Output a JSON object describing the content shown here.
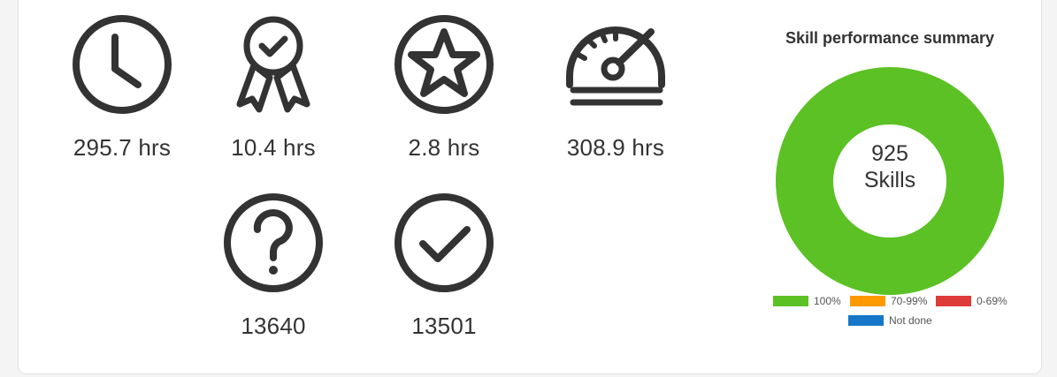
{
  "stats": {
    "clock_value": "295.7 hrs",
    "award_value": "10.4 hrs",
    "star_value": "2.8 hrs",
    "speed_value": "308.9 hrs",
    "question_value": "13640",
    "check_value": "13501"
  },
  "icons": {
    "clock": "clock-icon",
    "award": "award-ribbon-icon",
    "star": "star-icon",
    "speed": "speedometer-icon",
    "question": "question-icon",
    "check": "check-icon"
  },
  "colors": {
    "icon": "#333333",
    "done_100": "#5cc125",
    "done_70_99": "#ff9900",
    "done_0_69": "#e03b3b",
    "not_done": "#1677c9"
  },
  "chart_data": {
    "type": "pie",
    "title": "Skill performance summary",
    "center_value": "925",
    "center_unit": "Skills",
    "labels": [
      "100%",
      "70-99%",
      "0-69%",
      "Not done"
    ],
    "values": [
      100,
      0,
      0,
      0
    ],
    "colors": [
      "#5cc125",
      "#ff9900",
      "#e03b3b",
      "#1677c9"
    ],
    "legend_position": "bottom"
  }
}
